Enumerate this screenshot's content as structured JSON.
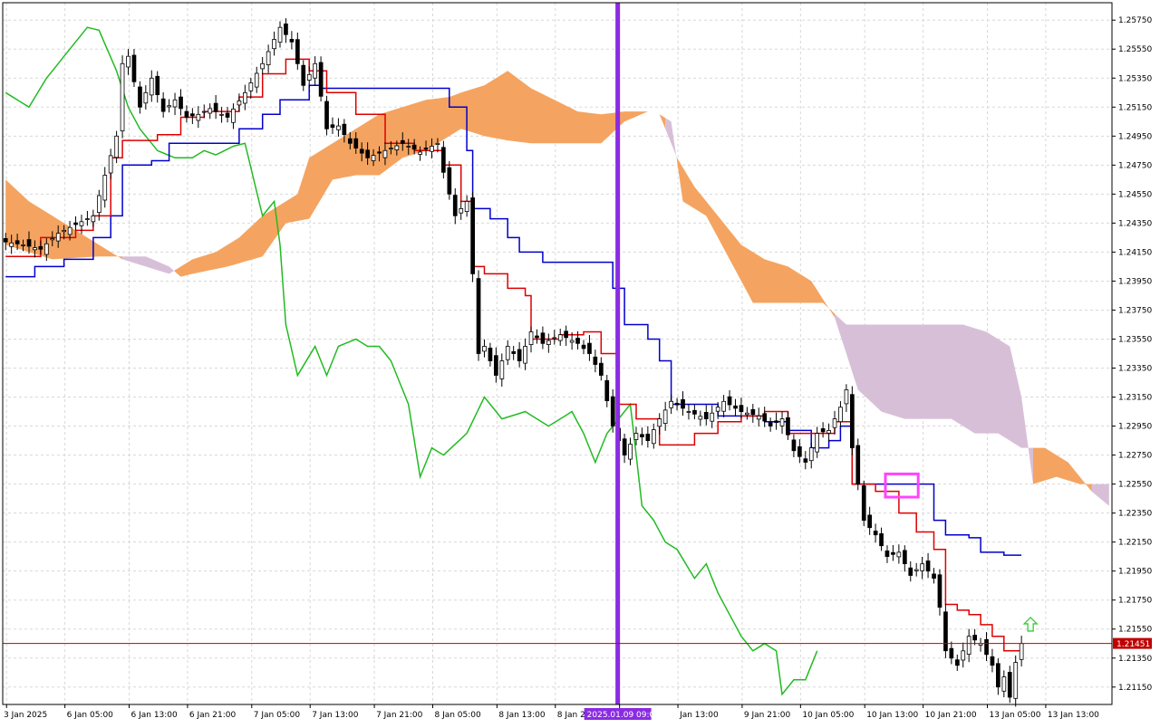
{
  "chart_data": {
    "type": "candlestick",
    "symbol_hint": "",
    "y_axis": {
      "min": 1.2095,
      "max": 1.2595,
      "tick_labels": [
        "1.25750",
        "1.25550",
        "1.25350",
        "1.25150",
        "1.24950",
        "1.24750",
        "1.24550",
        "1.24350",
        "1.24150",
        "1.23950",
        "1.23750",
        "1.23550",
        "1.23350",
        "1.23150",
        "1.22950",
        "1.22750",
        "1.22550",
        "1.22350",
        "1.22150",
        "1.21950",
        "1.21750",
        "1.21550",
        "1.21350",
        "1.21150"
      ],
      "tick_values": [
        1.2575,
        1.2555,
        1.2535,
        1.2515,
        1.2495,
        1.2475,
        1.2455,
        1.2435,
        1.2415,
        1.2395,
        1.2375,
        1.2355,
        1.2335,
        1.2315,
        1.2295,
        1.2275,
        1.2255,
        1.2235,
        1.2215,
        1.2195,
        1.2175,
        1.2155,
        1.2135,
        1.2115
      ]
    },
    "x_axis": {
      "labels": [
        "3 Jan 2025",
        "6 Jan 05:00",
        "6 Jan 13:00",
        "6 Jan 21:00",
        "7 Jan 05:00",
        "7 Jan 13:00",
        "7 Jan 21:00",
        "8 Jan 05:00",
        "8 Jan 13:00",
        "8 Jan 21:00",
        "2025.01.09 09:00",
        "Jan 13:00",
        "9 Jan 21:00",
        "10 Jan 05:00",
        "10 Jan 13:00",
        "10 Jan 21:00",
        "13 Jan 05:00",
        "13 Jan 13:00"
      ],
      "highlight_label": "2025.01.09 09:00"
    },
    "grid": true,
    "current_price": {
      "value": 1.21451,
      "label": "1.21451",
      "color": "#c00000"
    },
    "marker_time": {
      "label": "2025.01.09 09:00",
      "color": "#8a2be2"
    },
    "highlight_box": {
      "from_bar": 151,
      "to_bar": 156,
      "low": 1.2246,
      "high": 1.2262,
      "color": "#ff44ff"
    },
    "up_arrow": {
      "bar": 174,
      "price": 1.2158,
      "color": "#33cc33"
    },
    "colors": {
      "tenkan": "#dd0000",
      "kijun": "#0000cc",
      "chikou": "#22bb22",
      "kumo_bull": "#f4a460",
      "kumo_bear": "#d8bfd8",
      "bull_body": "#ffffff",
      "bear_body": "#000000",
      "candle_wick": "#000000"
    },
    "candles": [],
    "tenkan": [],
    "kijun": [],
    "chikou": [],
    "span_a": [],
    "span_b": []
  }
}
